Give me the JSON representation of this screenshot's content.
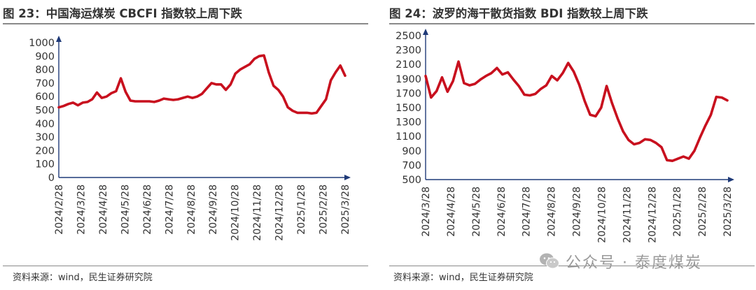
{
  "panels": [
    {
      "title": "图 23：中国海运煤炭 CBCFI 指数较上周下跌",
      "source": "资料来源：wind，民生证券研究院"
    },
    {
      "title": "图 24：波罗的海干散货指数 BDI 指数较上周下跌",
      "source": "资料来源：wind，民生证券研究院"
    }
  ],
  "watermark": {
    "text": "公众号 · 泰度煤炭",
    "icon": "wechat-icon"
  },
  "colors": {
    "line": "#c8101e",
    "axis": "#1f3a78",
    "text": "#333333"
  },
  "chart_data": [
    {
      "type": "line",
      "title": "图 23：中国海运煤炭 CBCFI 指数较上周下跌",
      "ylim": [
        0,
        1000
      ],
      "yticks": [
        "1000",
        "900",
        "800",
        "700",
        "600",
        "500",
        "400",
        "300",
        "200",
        "100",
        "0"
      ],
      "xticks": [
        "2024/2/28",
        "2024/3/28",
        "2024/4/28",
        "2024/5/28",
        "2024/6/28",
        "2024/7/28",
        "2024/8/28",
        "2024/9/28",
        "2024/10/28",
        "2024/11/28",
        "2024/12/28",
        "2025/1/28",
        "2025/2/28",
        "2025/3/28"
      ],
      "grid": false,
      "series": [
        {
          "values": [
            520,
            530,
            545,
            555,
            535,
            555,
            560,
            580,
            630,
            590,
            600,
            625,
            640,
            735,
            635,
            570,
            565,
            565,
            565,
            565,
            560,
            570,
            585,
            580,
            575,
            580,
            590,
            600,
            590,
            600,
            620,
            660,
            700,
            690,
            690,
            650,
            690,
            770,
            800,
            820,
            840,
            880,
            900,
            905,
            780,
            680,
            650,
            600,
            520,
            495,
            480,
            480,
            480,
            475,
            480,
            530,
            580,
            720,
            780,
            830,
            755
          ]
        }
      ]
    },
    {
      "type": "line",
      "title": "图 24：波罗的海干散货指数 BDI 指数较上周下跌",
      "ylim": [
        500,
        2500
      ],
      "yticks": [
        "2500",
        "2300",
        "2100",
        "1900",
        "1700",
        "1500",
        "1300",
        "1100",
        "900",
        "700",
        "500"
      ],
      "xticks": [
        "2024/3/28",
        "2024/4/28",
        "2024/5/28",
        "2024/6/28",
        "2024/7/28",
        "2024/8/28",
        "2024/9/28",
        "2024/10/28",
        "2024/11/28",
        "2024/12/28",
        "2025/1/28",
        "2025/2/28",
        "2025/3/28"
      ],
      "grid": false,
      "series": [
        {
          "values": [
            1940,
            1640,
            1730,
            1920,
            1720,
            1870,
            2140,
            1840,
            1810,
            1830,
            1890,
            1940,
            1980,
            2050,
            1960,
            1990,
            1890,
            1800,
            1680,
            1670,
            1690,
            1760,
            1810,
            1940,
            1880,
            1980,
            2120,
            2000,
            1820,
            1590,
            1400,
            1380,
            1500,
            1800,
            1560,
            1350,
            1170,
            1050,
            990,
            1010,
            1060,
            1050,
            1010,
            950,
            770,
            760,
            790,
            820,
            790,
            900,
            1080,
            1250,
            1400,
            1650,
            1640,
            1600
          ]
        }
      ]
    }
  ]
}
